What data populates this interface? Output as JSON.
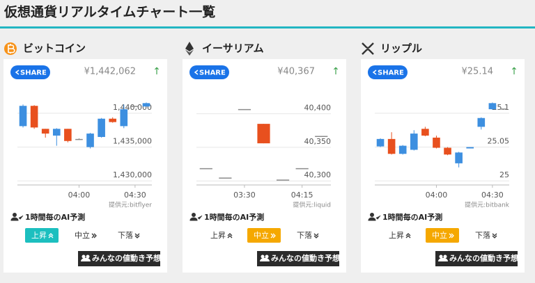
{
  "header": {
    "title": "仮想通貨リアルタイムチャート一覧"
  },
  "panels": [
    {
      "name": "ビットコイン",
      "share": "SHARE",
      "price": "¥1,442,062",
      "trend": "↑",
      "chart": {
        "type": "candlestick",
        "up_color": "#3d8fe0",
        "down_color": "#e8501e",
        "flat_color": "#8a8a8a",
        "ylim": [
          1429400,
          1443900
        ],
        "yticks": [
          {
            "value": 1430000,
            "label": "1,430,000"
          },
          {
            "value": 1435000,
            "label": "1,435,000"
          },
          {
            "value": 1440000,
            "label": "1,440,000"
          }
        ],
        "xticks": [
          {
            "value": 5,
            "label": "04:00"
          },
          {
            "value": 10,
            "label": "04:30"
          }
        ],
        "candles": [
          {
            "open": 1438100,
            "close": 1441100,
            "high": 1441300,
            "low": 1437900
          },
          {
            "open": 1441100,
            "close": 1437900,
            "high": 1441200,
            "low": 1437700
          },
          {
            "open": 1437700,
            "close": 1437000,
            "high": 1437700,
            "low": 1436400
          },
          {
            "open": 1436700,
            "close": 1437700,
            "high": 1437800,
            "low": 1435200
          },
          {
            "open": 1437700,
            "close": 1435900,
            "high": 1437700,
            "low": 1435700
          },
          {
            "open": 1436200,
            "close": 1436200,
            "high": 1436300,
            "low": 1436100
          },
          {
            "open": 1435000,
            "close": 1437000,
            "high": 1437100,
            "low": 1434800
          },
          {
            "open": 1436500,
            "close": 1439200,
            "high": 1439300,
            "low": 1436400
          },
          {
            "open": 1439200,
            "close": 1438700,
            "high": 1439400,
            "low": 1438600
          },
          {
            "open": 1438100,
            "close": 1440600,
            "high": 1441300,
            "low": 1437800
          },
          {
            "open": 1441100,
            "close": 1441100,
            "high": 1441100,
            "low": 1441100
          },
          {
            "open": 1441000,
            "close": 1441500,
            "high": 1441600,
            "low": 1441000
          }
        ]
      },
      "source": "提供元:bitflyer",
      "forecast_label": "1時間毎のAI予測",
      "buttons": [
        "上昇",
        "中立",
        "下落"
      ],
      "selected": 0,
      "selected_color": "#1cbfbf",
      "vote": "みんなの値動き予想"
    },
    {
      "name": "イーサリアム",
      "share": "SHARE",
      "price": "¥40,367",
      "trend": "↑",
      "chart": {
        "type": "candlestick",
        "up_color": "#3d8fe0",
        "down_color": "#e8501e",
        "flat_color": "#8a8a8a",
        "ylim": [
          40294,
          40440
        ],
        "yticks": [
          {
            "value": 40300,
            "label": "40,300"
          },
          {
            "value": 40350,
            "label": "40,350"
          },
          {
            "value": 40400,
            "label": "40,400"
          }
        ],
        "xticks": [
          {
            "value": 2,
            "label": "03:30"
          },
          {
            "value": 5,
            "label": "04:15"
          }
        ],
        "candles": [
          {
            "open": 40319,
            "close": 40319,
            "high": 40319,
            "low": 40319
          },
          {
            "open": 40305,
            "close": 40305,
            "high": 40305,
            "low": 40305
          },
          {
            "open": 40407,
            "close": 40407,
            "high": 40407,
            "low": 40407
          },
          {
            "open": 40385,
            "close": 40356,
            "high": 40385,
            "low": 40356
          },
          {
            "open": 40302,
            "close": 40302,
            "high": 40302,
            "low": 40302
          },
          {
            "open": 40319,
            "close": 40319,
            "high": 40319,
            "low": 40319
          },
          {
            "open": 40367,
            "close": 40367,
            "high": 40367,
            "low": 40367
          }
        ]
      },
      "source": "提供元:liquid",
      "forecast_label": "1時間毎のAI予測",
      "buttons": [
        "上昇",
        "中立",
        "下落"
      ],
      "selected": 1,
      "selected_color": "#f5a800",
      "vote": "みんなの値動き予想"
    },
    {
      "name": "リップル",
      "share": "SHARE",
      "price": "¥25.14",
      "trend": "↑",
      "chart": {
        "type": "candlestick",
        "up_color": "#3d8fe0",
        "down_color": "#e8501e",
        "flat_color": "#8a8a8a",
        "ylim": [
          24.994,
          25.139
        ],
        "yticks": [
          25,
          25.05,
          25.1
        ],
        "xticks": [
          {
            "value": 5,
            "label": "04:00"
          },
          {
            "value": 10,
            "label": "04:30"
          }
        ],
        "candles": [
          {
            "open": 25.051,
            "close": 25.062,
            "high": 25.063,
            "low": 25.05
          },
          {
            "open": 25.062,
            "close": 25.04,
            "high": 25.072,
            "low": 25.039
          },
          {
            "open": 25.04,
            "close": 25.052,
            "high": 25.053,
            "low": 25.039
          },
          {
            "open": 25.046,
            "close": 25.07,
            "high": 25.075,
            "low": 25.045
          },
          {
            "open": 25.077,
            "close": 25.067,
            "high": 25.08,
            "low": 25.066
          },
          {
            "open": 25.064,
            "close": 25.049,
            "high": 25.067,
            "low": 25.048
          },
          {
            "open": 25.049,
            "close": 25.039,
            "high": 25.05,
            "low": 25.038
          },
          {
            "open": 25.026,
            "close": 25.042,
            "high": 25.043,
            "low": 25.02
          },
          {
            "open": 25.048,
            "close": 25.05,
            "high": 25.05,
            "low": 25.048
          },
          {
            "open": 25.08,
            "close": 25.093,
            "high": 25.094,
            "low": 25.076
          },
          {
            "open": 25.106,
            "close": 25.115,
            "high": 25.116,
            "low": 25.105
          },
          {
            "open": 25.107,
            "close": 25.107,
            "high": 25.107,
            "low": 25.107
          }
        ]
      },
      "source": "提供元:bitbank",
      "forecast_label": "1時間毎のAI予測",
      "buttons": [
        "上昇",
        "中立",
        "下落"
      ],
      "selected": 1,
      "selected_color": "#f5a800",
      "vote": "みんなの値動き予想"
    }
  ]
}
